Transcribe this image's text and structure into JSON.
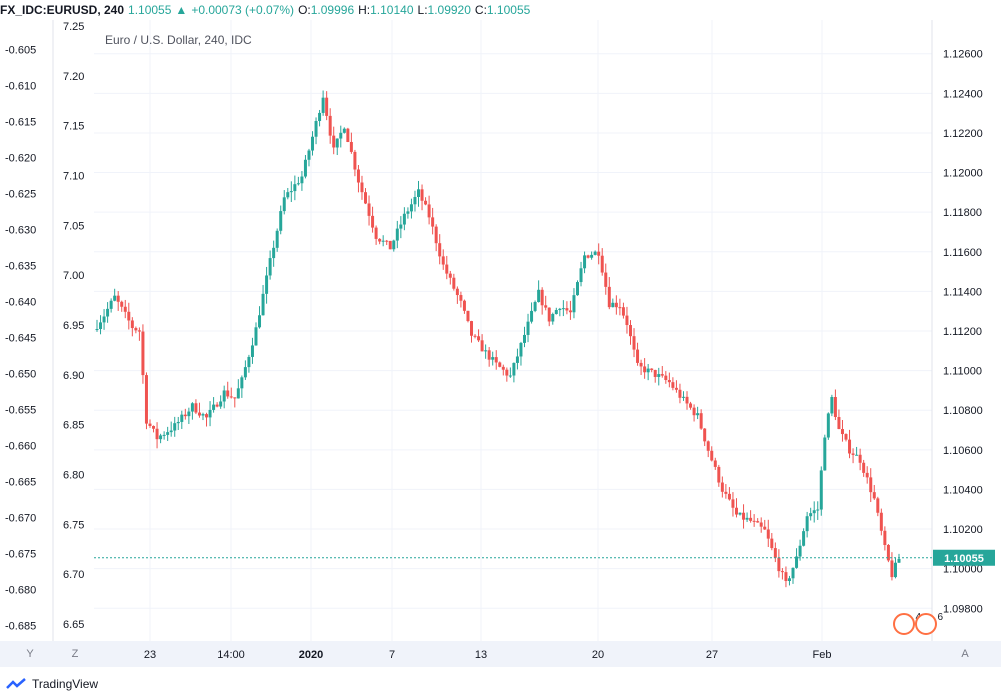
{
  "header": {
    "symbol": "FX_IDC:EURUSD, 240",
    "last": "1.10055",
    "change_arrow": "▲",
    "change": "+0.00073 (+0.07%)",
    "o_label": "O:",
    "o": "1.09996",
    "h_label": "H:",
    "h": "1.10140",
    "l_label": "L:",
    "l": "1.09920",
    "c_label": "C:",
    "c": "1.10055"
  },
  "legend": {
    "title": "Euro / U.S. Dollar, 240, IDC"
  },
  "chart_data": {
    "type": "candlestick",
    "title": "Euro / U.S. Dollar, 240, IDC",
    "right_axis": {
      "ticks": [
        "1.12600",
        "1.12400",
        "1.12200",
        "1.12000",
        "1.11800",
        "1.11600",
        "1.11400",
        "1.11200",
        "1.11000",
        "1.10800",
        "1.10600",
        "1.10400",
        "1.10200",
        "1.10000",
        "1.09800"
      ],
      "range": [
        1.0967,
        1.1274
      ],
      "last_price": "1.10055"
    },
    "inner_axis": {
      "ticks": [
        "7.25",
        "7.20",
        "7.15",
        "7.10",
        "7.05",
        "7.00",
        "6.95",
        "6.90",
        "6.85",
        "6.80",
        "6.75",
        "6.70",
        "6.65"
      ],
      "range": [
        6.64,
        7.25
      ]
    },
    "left_axis": {
      "ticks": [
        "-0.605",
        "-0.610",
        "-0.615",
        "-0.620",
        "-0.625",
        "-0.630",
        "-0.635",
        "-0.640",
        "-0.645",
        "-0.650",
        "-0.655",
        "-0.660",
        "-0.665",
        "-0.670",
        "-0.675",
        "-0.680",
        "-0.685"
      ],
      "range": [
        -0.6862,
        -0.6017
      ]
    },
    "x_ticks": [
      "23",
      "14:00",
      "2020",
      "7",
      "13",
      "20",
      "27",
      "Feb"
    ],
    "x_ticks_bold": [
      "2020"
    ],
    "up_color": "#26a69a",
    "down_color": "#ef5350",
    "keypoints": [
      [
        0,
        1.1123
      ],
      [
        2,
        1.1128
      ],
      [
        5,
        1.1137
      ],
      [
        10,
        1.1122
      ],
      [
        12,
        1.112
      ],
      [
        14,
        1.1075
      ],
      [
        17,
        1.1066
      ],
      [
        22,
        1.1072
      ],
      [
        27,
        1.1082
      ],
      [
        31,
        1.1076
      ],
      [
        36,
        1.1089
      ],
      [
        39,
        1.1086
      ],
      [
        41,
        1.1095
      ],
      [
        45,
        1.1121
      ],
      [
        49,
        1.1155
      ],
      [
        53,
        1.1187
      ],
      [
        58,
        1.1198
      ],
      [
        61,
        1.1218
      ],
      [
        64,
        1.1239
      ],
      [
        67,
        1.1211
      ],
      [
        70,
        1.1224
      ],
      [
        74,
        1.1196
      ],
      [
        79,
        1.1168
      ],
      [
        83,
        1.1162
      ],
      [
        87,
        1.1178
      ],
      [
        91,
        1.119
      ],
      [
        94,
        1.1178
      ],
      [
        98,
        1.1153
      ],
      [
        103,
        1.1134
      ],
      [
        106,
        1.1118
      ],
      [
        110,
        1.1109
      ],
      [
        113,
        1.1103
      ],
      [
        117,
        1.1097
      ],
      [
        121,
        1.1118
      ],
      [
        125,
        1.1139
      ],
      [
        128,
        1.1126
      ],
      [
        131,
        1.1133
      ],
      [
        134,
        1.1129
      ],
      [
        138,
        1.1158
      ],
      [
        142,
        1.116
      ],
      [
        145,
        1.1134
      ],
      [
        148,
        1.1133
      ],
      [
        150,
        1.1124
      ],
      [
        153,
        1.1102
      ],
      [
        157,
        1.1099
      ],
      [
        162,
        1.1094
      ],
      [
        166,
        1.1085
      ],
      [
        170,
        1.1077
      ],
      [
        173,
        1.106
      ],
      [
        177,
        1.104
      ],
      [
        181,
        1.1027
      ],
      [
        185,
        1.1024
      ],
      [
        189,
        1.1019
      ],
      [
        192,
        1.1005
      ],
      [
        195,
        1.0992
      ],
      [
        198,
        1.1005
      ],
      [
        201,
        1.1027
      ],
      [
        204,
        1.103
      ],
      [
        206,
        1.1068
      ],
      [
        208,
        1.1086
      ],
      [
        210,
        1.107
      ],
      [
        213,
        1.106
      ],
      [
        216,
        1.1055
      ],
      [
        220,
        1.1035
      ],
      [
        223,
        1.101
      ],
      [
        225,
        1.0997
      ],
      [
        227,
        1.1005
      ]
    ]
  },
  "bottom_axis": {
    "left_btn": "Y",
    "z_btn": "Z",
    "auto_btn": "A"
  },
  "events": [
    {
      "label": "",
      "count": "4"
    },
    {
      "label": "",
      "count": "6"
    }
  ],
  "footer": {
    "brand": "TradingView"
  }
}
